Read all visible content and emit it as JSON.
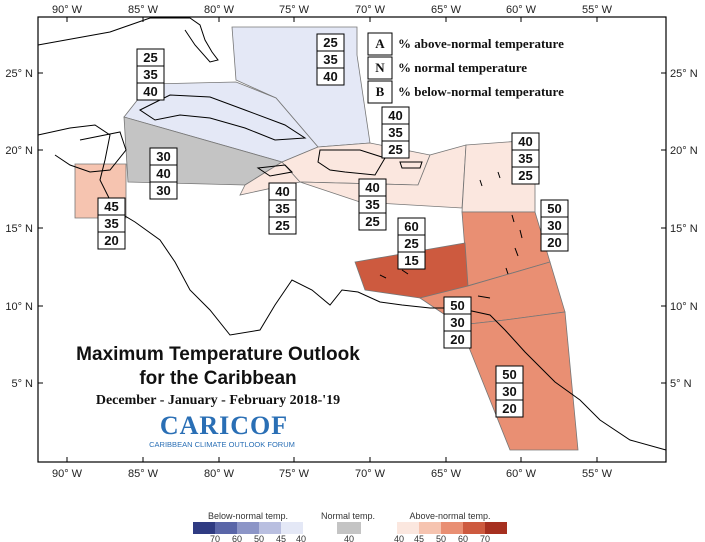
{
  "title_line1": "Maximum Temperature Outlook",
  "title_line2": "for the Caribbean",
  "subtitle": "December - January - February 2018-'19",
  "logo": {
    "name": "CARICOF",
    "full_name": "CARIBBEAN CLIMATE OUTLOOK FORUM"
  },
  "axes": {
    "x_ticks": [
      "90° W",
      "85° W",
      "80° W",
      "75° W",
      "70° W",
      "65° W",
      "60° W",
      "55° W"
    ],
    "y_ticks": [
      "25° N",
      "20° N",
      "15° N",
      "10° N",
      "5° N"
    ]
  },
  "legend_key": [
    {
      "letter": "A",
      "text": "% above-normal temperature"
    },
    {
      "letter": "N",
      "text": "% normal temperature"
    },
    {
      "letter": "B",
      "text": "% below-normal temperature"
    }
  ],
  "regions": [
    {
      "id": "bahamas",
      "A": "25",
      "N": "35",
      "B": "40",
      "color": "#e4e8f6"
    },
    {
      "id": "cuba-west",
      "A": "25",
      "N": "35",
      "B": "40",
      "color": "#e4e8f6"
    },
    {
      "id": "cayman",
      "A": "30",
      "N": "40",
      "B": "30",
      "color": "#c4c4c4"
    },
    {
      "id": "belize",
      "A": "45",
      "N": "35",
      "B": "20",
      "color": "#f6c4b0"
    },
    {
      "id": "jamaica",
      "A": "40",
      "N": "35",
      "B": "25",
      "color": "#fbe7df"
    },
    {
      "id": "hispaniola",
      "A": "40",
      "N": "35",
      "B": "25",
      "color": "#fbe7df"
    },
    {
      "id": "caribbean-sea",
      "A": "40",
      "N": "35",
      "B": "25",
      "color": "#fbe7df"
    },
    {
      "id": "northern-lesser-antilles",
      "A": "40",
      "N": "35",
      "B": "25",
      "color": "#fbe7df"
    },
    {
      "id": "abc-islands",
      "A": "60",
      "N": "25",
      "B": "15",
      "color": "#cd5a3f"
    },
    {
      "id": "windward-islands",
      "A": "50",
      "N": "30",
      "B": "20",
      "color": "#e98f73"
    },
    {
      "id": "trinidad",
      "A": "50",
      "N": "30",
      "B": "20",
      "color": "#e98f73"
    },
    {
      "id": "guianas",
      "A": "50",
      "N": "30",
      "B": "20",
      "color": "#e98f73"
    }
  ],
  "color_scale": {
    "below": {
      "label": "Below-normal temp.",
      "ticks": [
        "70",
        "60",
        "50",
        "45",
        "40"
      ],
      "colors": [
        "#2f3b82",
        "#5a66a8",
        "#8c95c7",
        "#b9bfe0",
        "#e4e8f6"
      ]
    },
    "normal": {
      "label": "Normal temp.",
      "ticks": [
        "40"
      ],
      "colors": [
        "#c4c4c4"
      ]
    },
    "above": {
      "label": "Above-normal temp.",
      "ticks": [
        "40",
        "45",
        "50",
        "60",
        "70"
      ],
      "colors": [
        "#fbe7df",
        "#f6c4b0",
        "#e98f73",
        "#cd5a3f",
        "#a63020"
      ]
    }
  }
}
